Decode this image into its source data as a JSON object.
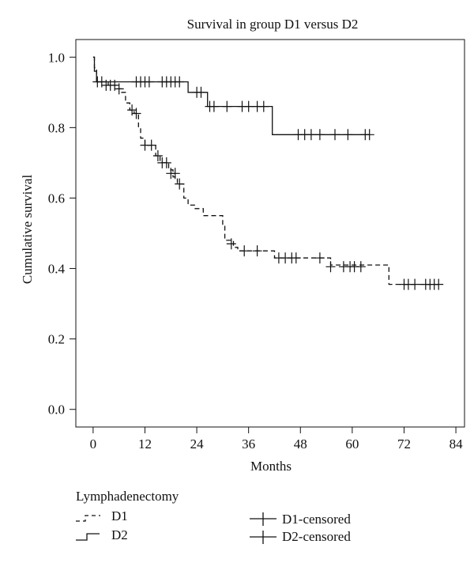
{
  "chart_data": {
    "type": "line",
    "subtype": "kaplan-meier",
    "title": "Survival in group D1 versus D2",
    "xlabel": "Months",
    "ylabel": "Cumulative survival",
    "xlim": [
      -4,
      86
    ],
    "ylim": [
      -0.05,
      1.05
    ],
    "xticks": [
      0,
      12,
      24,
      36,
      48,
      60,
      72,
      84
    ],
    "yticks": [
      0.0,
      0.2,
      0.4,
      0.6,
      0.8,
      1.0
    ],
    "xtick_labels": [
      "0",
      "12",
      "24",
      "36",
      "48",
      "60",
      "72",
      "84"
    ],
    "ytick_labels": [
      "0.0",
      "0.2",
      "0.4",
      "0.6",
      "0.8",
      "1.0"
    ],
    "legend": {
      "title": "Lymphadenectomy",
      "entries": [
        {
          "key": "D1",
          "label": "D1",
          "style": "dashed"
        },
        {
          "key": "D2",
          "label": "D2",
          "style": "solid"
        },
        {
          "key": "D1c",
          "label": "D1-censored",
          "style": "cross"
        },
        {
          "key": "D2c",
          "label": "D2-censored",
          "style": "cross"
        }
      ]
    },
    "series": [
      {
        "name": "D1",
        "style": "dashed",
        "steps": [
          [
            0,
            1.0
          ],
          [
            0.3,
            0.97
          ],
          [
            0.8,
            0.93
          ],
          [
            3.5,
            0.92
          ],
          [
            5.5,
            0.91
          ],
          [
            6.5,
            0.9
          ],
          [
            7.5,
            0.87
          ],
          [
            8.5,
            0.85
          ],
          [
            9.5,
            0.84
          ],
          [
            10.5,
            0.8
          ],
          [
            11,
            0.77
          ],
          [
            12,
            0.75
          ],
          [
            14.5,
            0.72
          ],
          [
            15.5,
            0.7
          ],
          [
            17.5,
            0.68
          ],
          [
            18.5,
            0.66
          ],
          [
            19.5,
            0.64
          ],
          [
            21,
            0.6
          ],
          [
            22,
            0.58
          ],
          [
            23.5,
            0.57
          ],
          [
            25.5,
            0.55
          ],
          [
            30,
            0.52
          ],
          [
            30.5,
            0.48
          ],
          [
            32.5,
            0.46
          ],
          [
            33.5,
            0.45
          ],
          [
            37,
            0.45
          ],
          [
            39,
            0.45
          ],
          [
            42,
            0.43
          ],
          [
            55,
            0.41
          ],
          [
            68.5,
            0.355
          ],
          [
            80,
            0.355
          ]
        ],
        "censored": [
          [
            1,
            0.93
          ],
          [
            2,
            0.93
          ],
          [
            3,
            0.92
          ],
          [
            4,
            0.92
          ],
          [
            5,
            0.92
          ],
          [
            6,
            0.91
          ],
          [
            9,
            0.85
          ],
          [
            10,
            0.84
          ],
          [
            12,
            0.75
          ],
          [
            13.5,
            0.75
          ],
          [
            15,
            0.72
          ],
          [
            16,
            0.7
          ],
          [
            17,
            0.7
          ],
          [
            18,
            0.67
          ],
          [
            19,
            0.67
          ],
          [
            20,
            0.64
          ],
          [
            32,
            0.47
          ],
          [
            35,
            0.45
          ],
          [
            38,
            0.45
          ],
          [
            43,
            0.43
          ],
          [
            44.5,
            0.43
          ],
          [
            46,
            0.43
          ],
          [
            47,
            0.43
          ],
          [
            52.5,
            0.43
          ],
          [
            55,
            0.405
          ],
          [
            58,
            0.405
          ],
          [
            59.5,
            0.405
          ],
          [
            60.5,
            0.405
          ],
          [
            62,
            0.405
          ],
          [
            72,
            0.355
          ],
          [
            73,
            0.355
          ],
          [
            74.5,
            0.355
          ],
          [
            77,
            0.355
          ],
          [
            78,
            0.355
          ],
          [
            79,
            0.355
          ],
          [
            80,
            0.355
          ]
        ]
      },
      {
        "name": "D2",
        "style": "solid",
        "steps": [
          [
            0,
            1.0
          ],
          [
            0.3,
            0.96
          ],
          [
            0.8,
            0.93
          ],
          [
            22,
            0.9
          ],
          [
            26.5,
            0.86
          ],
          [
            41.5,
            0.78
          ],
          [
            64,
            0.78
          ]
        ],
        "censored": [
          [
            10,
            0.93
          ],
          [
            11,
            0.93
          ],
          [
            12,
            0.93
          ],
          [
            13,
            0.93
          ],
          [
            16,
            0.93
          ],
          [
            17,
            0.93
          ],
          [
            18,
            0.93
          ],
          [
            19,
            0.93
          ],
          [
            20,
            0.93
          ],
          [
            24,
            0.9
          ],
          [
            25,
            0.9
          ],
          [
            27,
            0.86
          ],
          [
            28,
            0.86
          ],
          [
            31,
            0.86
          ],
          [
            34.5,
            0.86
          ],
          [
            36,
            0.86
          ],
          [
            38,
            0.86
          ],
          [
            39.5,
            0.86
          ],
          [
            47.5,
            0.78
          ],
          [
            49,
            0.78
          ],
          [
            50.5,
            0.78
          ],
          [
            52.5,
            0.78
          ],
          [
            56,
            0.78
          ],
          [
            59,
            0.78
          ],
          [
            63,
            0.78
          ],
          [
            64,
            0.78
          ]
        ]
      }
    ]
  }
}
